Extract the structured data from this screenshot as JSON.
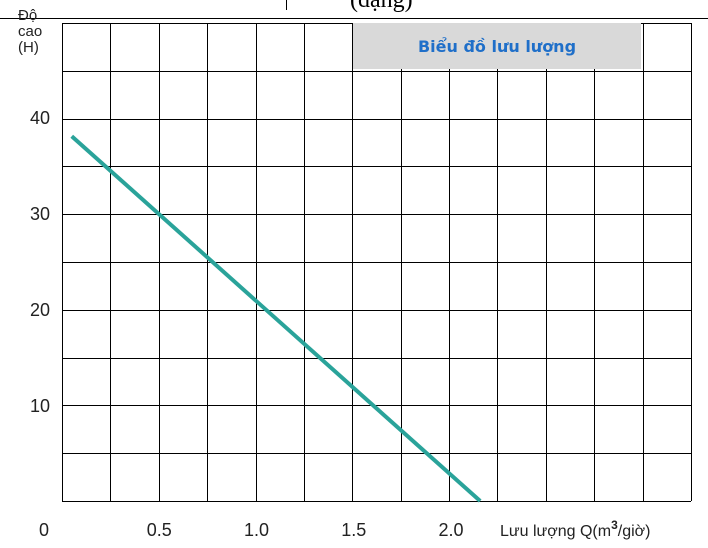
{
  "header_fragment": "(dạng)",
  "chart_data": {
    "type": "line",
    "title": "Biểu đồ lưu lượng",
    "ylabel_lines": [
      "Độ",
      "cao",
      "(H)"
    ],
    "xlabel": "Lưu lượng Q(m³/giờ)",
    "xlabel_main": "Lưu lượng Q(m",
    "xlabel_sup": "3",
    "xlabel_tail": "/giờ)",
    "x_ticks": [
      "0",
      "0.5",
      "1.0",
      "1.5",
      "2.0"
    ],
    "y_ticks": [
      "10",
      "20",
      "30",
      "40"
    ],
    "xlim": [
      0,
      2.5
    ],
    "ylim": [
      0,
      50
    ],
    "grid": true,
    "legend": "top-right",
    "series_color": "#2aa39a",
    "grid_color": "#000000",
    "legend_bg": "#d9d9d9",
    "series": [
      {
        "x": [
          0.05,
          2.15
        ],
        "y": [
          38,
          0
        ]
      }
    ]
  }
}
